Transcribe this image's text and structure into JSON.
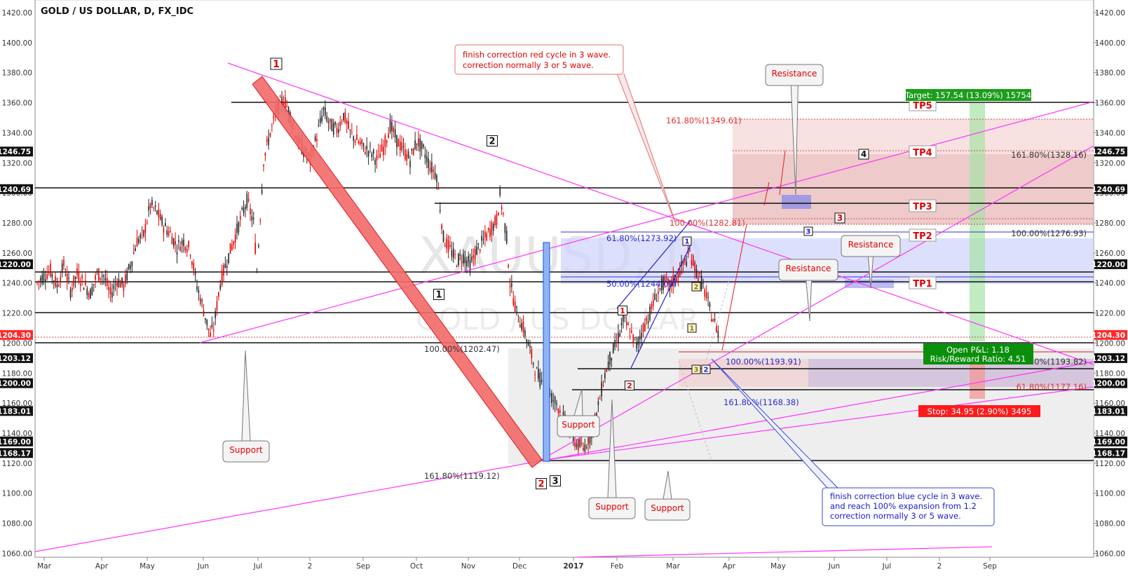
{
  "title": "GOLD / US DOLLAR, D, FX_IDC",
  "watermark": {
    "symbol": "XAUUSD, D",
    "name": "GOLD / US DOLLAR"
  },
  "colors": {
    "candle_up": "#222222",
    "candle_down": "#e00000",
    "trend": "#ff33ff",
    "level": "#111111",
    "red_label": "#e00000",
    "blue_label": "#1a1ad0",
    "target_green": "#1b9e1b",
    "stop_red": "#ff1a1a"
  },
  "axis": {
    "right_ticks": [
      "1420.00",
      "1400.00",
      "1380.00",
      "1360.00",
      "1340.00",
      "1320.00",
      "1300.00",
      "1280.00",
      "1260.00",
      "1240.00",
      "1220.00",
      "1200.00",
      "1180.00",
      "1160.00",
      "1140.00",
      "1120.00",
      "1100.00",
      "1080.00",
      "1060.00"
    ],
    "left_ticks": [
      "1420.00",
      "1400.00",
      "1380.00",
      "1360.00",
      "1340.00",
      "1320.00",
      "1300.00",
      "1280.00",
      "1260.00",
      "1240.00",
      "1220.00",
      "1200.00",
      "1180.00",
      "1160.00",
      "1140.00",
      "1120.00",
      "1100.00",
      "1080.00",
      "1060.00"
    ],
    "x_ticks": [
      "Mar",
      "Apr",
      "May",
      "Jun",
      "Jul",
      "2",
      "Sep",
      "Oct",
      "Nov",
      "Dec",
      "2017",
      "Feb",
      "Mar",
      "Apr",
      "May",
      "Jun",
      "Jul",
      "2",
      "Sep"
    ]
  },
  "price_tags": [
    {
      "label": "1246.75",
      "price": 1327.5
    },
    {
      "label": "1240.69",
      "price": 1302.5
    },
    {
      "label": "1220.00",
      "price": 1252.5
    },
    {
      "label": "1204.30",
      "price": 1205.4
    },
    {
      "label": "1203.12",
      "price": 1190.0
    },
    {
      "label": "1200.00",
      "price": 1173.3
    },
    {
      "label": "1183.01",
      "price": 1154.8
    },
    {
      "label": "1169.00",
      "price": 1134.5
    },
    {
      "label": "1168.17",
      "price": 1126.8
    }
  ],
  "wave_labels": [
    {
      "text": "1",
      "color": "red"
    },
    {
      "text": "2",
      "color": "black"
    },
    {
      "text": "1",
      "color": "black"
    },
    {
      "text": "2",
      "color": "red"
    },
    {
      "text": "3",
      "color": "black"
    },
    {
      "text": "1",
      "color": "red"
    },
    {
      "text": "2",
      "color": "red"
    },
    {
      "text": "3",
      "color": "red"
    },
    {
      "text": "4",
      "color": "black"
    },
    {
      "text": "1",
      "color": "blue"
    },
    {
      "text": "2",
      "color": "blue"
    },
    {
      "text": "3",
      "color": "blue"
    },
    {
      "text": "1",
      "color": "olive"
    },
    {
      "text": "2",
      "color": "olive"
    },
    {
      "text": "3",
      "color": "olive"
    }
  ],
  "tp_labels": [
    "TP5",
    "TP4",
    "TP3",
    "TP2",
    "TP1"
  ],
  "fib_labels": [
    {
      "text": "161.80%(1349.61)",
      "color": "red"
    },
    {
      "text": "161.80%(1328.16)",
      "color": "black"
    },
    {
      "text": "100.00%(1282.81)",
      "color": "red"
    },
    {
      "text": "100.00%(1276.93)",
      "color": "black"
    },
    {
      "text": "61.80%(1273.92)",
      "color": "blue"
    },
    {
      "text": "50.00%(1244.09)",
      "color": "blue"
    },
    {
      "text": "100.00%(1202.47)",
      "color": "black"
    },
    {
      "text": "100.00%(1193.91)",
      "color": "blue"
    },
    {
      "text": "61.80%(1193.82)",
      "color": "black"
    },
    {
      "text": "61.80%(1177.16)",
      "color": "red"
    },
    {
      "text": "161.80%(1168.38)",
      "color": "blue"
    },
    {
      "text": "161.80%(1119.12)",
      "color": "black"
    }
  ],
  "callouts": {
    "support": "Support",
    "resistance": "Resistance",
    "red_note_1": "finish correction red cycle in 3 wave.",
    "red_note_2": "correction normally 3 or 5 wave.",
    "blue_note_1": "finish correction blue cycle in 3 wave.",
    "blue_note_2": "and reach 100% expansion from 1.2",
    "blue_note_3": "correction normally 3 or 5 wave."
  },
  "position": {
    "target": "Target: 157.54 (13.09%) 15754",
    "stop": "Stop: 34.95 (2.90%) 3495",
    "open_pl": "Open P&L: 1.18",
    "risk_reward": "Risk/Reward Ratio: 4.51"
  },
  "chart_data": {
    "type": "candlestick",
    "title": "GOLD / US DOLLAR, D, FX_IDC",
    "ylim": [
      1055,
      1428
    ],
    "y_ticks": [
      1060,
      1080,
      1100,
      1120,
      1140,
      1160,
      1180,
      1200,
      1220,
      1240,
      1260,
      1280,
      1300,
      1320,
      1340,
      1360,
      1380,
      1400,
      1420
    ],
    "x_labels": [
      "Mar",
      "Apr",
      "May",
      "Jun",
      "Jul",
      "2",
      "Sep",
      "Oct",
      "Nov",
      "Dec",
      "2017",
      "Feb",
      "Mar",
      "Apr",
      "May",
      "Jun",
      "Jul",
      "2",
      "Sep"
    ],
    "close_path": [
      [
        0,
        1240
      ],
      [
        4,
        1245
      ],
      [
        8,
        1248
      ],
      [
        12,
        1238
      ],
      [
        16,
        1252
      ],
      [
        20,
        1235
      ],
      [
        24,
        1246
      ],
      [
        28,
        1240
      ],
      [
        32,
        1233
      ],
      [
        36,
        1246
      ],
      [
        40,
        1245
      ],
      [
        44,
        1232
      ],
      [
        48,
        1242
      ],
      [
        52,
        1238
      ],
      [
        56,
        1252
      ],
      [
        60,
        1268
      ],
      [
        64,
        1272
      ],
      [
        68,
        1292
      ],
      [
        72,
        1287
      ],
      [
        76,
        1278
      ],
      [
        80,
        1273
      ],
      [
        84,
        1264
      ],
      [
        88,
        1268
      ],
      [
        92,
        1262
      ],
      [
        96,
        1238
      ],
      [
        100,
        1222
      ],
      [
        104,
        1205
      ],
      [
        106,
        1210
      ],
      [
        110,
        1240
      ],
      [
        114,
        1255
      ],
      [
        118,
        1268
      ],
      [
        122,
        1282
      ],
      [
        126,
        1295
      ],
      [
        130,
        1280
      ],
      [
        132,
        1248
      ],
      [
        136,
        1322
      ],
      [
        140,
        1340
      ],
      [
        144,
        1355
      ],
      [
        148,
        1363
      ],
      [
        152,
        1352
      ],
      [
        156,
        1336
      ],
      [
        160,
        1328
      ],
      [
        164,
        1322
      ],
      [
        168,
        1338
      ],
      [
        172,
        1355
      ],
      [
        176,
        1345
      ],
      [
        180,
        1342
      ],
      [
        184,
        1352
      ],
      [
        188,
        1340
      ],
      [
        192,
        1335
      ],
      [
        196,
        1330
      ],
      [
        200,
        1328
      ],
      [
        204,
        1322
      ],
      [
        208,
        1330
      ],
      [
        212,
        1345
      ],
      [
        216,
        1335
      ],
      [
        220,
        1328
      ],
      [
        224,
        1322
      ],
      [
        228,
        1335
      ],
      [
        232,
        1328
      ],
      [
        236,
        1318
      ],
      [
        240,
        1312
      ],
      [
        244,
        1270
      ],
      [
        248,
        1262
      ],
      [
        252,
        1255
      ],
      [
        256,
        1258
      ],
      [
        260,
        1252
      ],
      [
        264,
        1262
      ],
      [
        268,
        1268
      ],
      [
        272,
        1275
      ],
      [
        276,
        1282
      ],
      [
        278,
        1298
      ],
      [
        280,
        1285
      ],
      [
        282,
        1270
      ],
      [
        284,
        1240
      ],
      [
        288,
        1220
      ],
      [
        292,
        1210
      ],
      [
        296,
        1195
      ],
      [
        300,
        1180
      ],
      [
        304,
        1172
      ],
      [
        308,
        1165
      ],
      [
        312,
        1160
      ],
      [
        316,
        1150
      ],
      [
        320,
        1140
      ],
      [
        324,
        1133
      ],
      [
        328,
        1130
      ],
      [
        332,
        1138
      ],
      [
        336,
        1152
      ],
      [
        340,
        1175
      ],
      [
        344,
        1190
      ],
      [
        348,
        1200
      ],
      [
        352,
        1215
      ],
      [
        356,
        1208
      ],
      [
        360,
        1198
      ],
      [
        364,
        1210
      ],
      [
        368,
        1220
      ],
      [
        372,
        1232
      ],
      [
        376,
        1240
      ],
      [
        380,
        1238
      ],
      [
        384,
        1244
      ],
      [
        388,
        1252
      ],
      [
        392,
        1260
      ],
      [
        396,
        1248
      ],
      [
        400,
        1238
      ],
      [
        404,
        1222
      ],
      [
        408,
        1210
      ],
      [
        410,
        1205
      ]
    ],
    "note": "OHLC candles are a visual approximation of the daily price series"
  }
}
